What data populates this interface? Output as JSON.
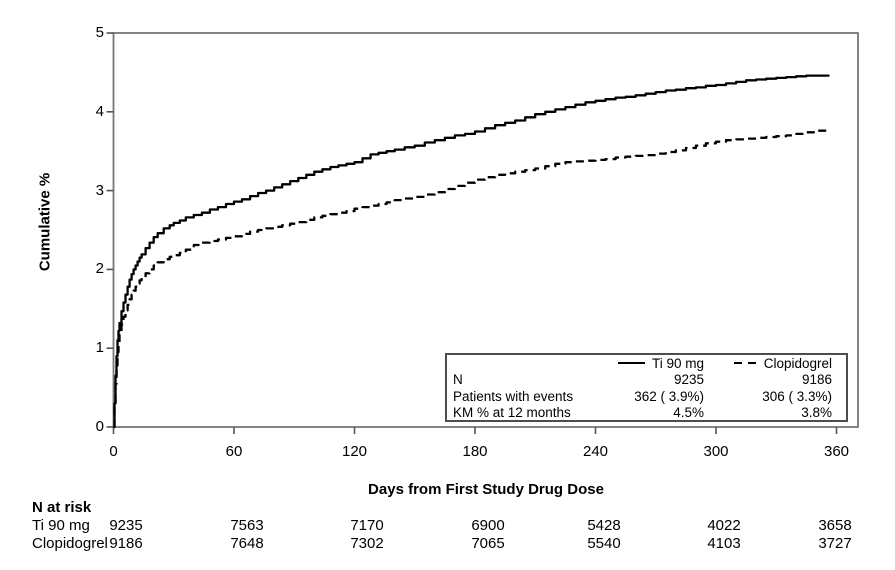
{
  "figure": {
    "background": "#ffffff",
    "frame_color": "#777777",
    "tick_color": "#555555",
    "line_color": "#000000"
  },
  "y_axis": {
    "label": "Cumulative %",
    "ticks": [
      "0",
      "1",
      "2",
      "3",
      "4",
      "5"
    ]
  },
  "x_axis": {
    "label": "Days from First Study Drug Dose",
    "ticks": [
      "0",
      "60",
      "120",
      "180",
      "240",
      "300",
      "360"
    ]
  },
  "legend": {
    "row_labels": {
      "n": "N",
      "events": "Patients with events",
      "km": "KM % at 12 months"
    },
    "series": [
      {
        "name": "Ti 90 mg",
        "line": "solid",
        "n": "9235",
        "events": "362 ( 3.9%)",
        "km": "4.5%"
      },
      {
        "name": "Clopidogrel",
        "line": "dashed",
        "n": "9186",
        "events": "306 ( 3.3%)",
        "km": "3.8%"
      }
    ]
  },
  "n_at_risk": {
    "title": "N at risk",
    "rows": [
      {
        "label": "Ti 90 mg",
        "counts": [
          "9235",
          "7563",
          "7170",
          "6900",
          "5428",
          "4022",
          "3658"
        ]
      },
      {
        "label": "Clopidogrel",
        "counts": [
          "9186",
          "7648",
          "7302",
          "7065",
          "5540",
          "4103",
          "3727"
        ]
      }
    ]
  },
  "chart_data": {
    "type": "line",
    "subtype": "kaplan-meier-cumulative-incidence",
    "title": "",
    "xlabel": "Days from First Study Drug Dose",
    "ylabel": "Cumulative %",
    "xlim": [
      0,
      370
    ],
    "ylim": [
      0,
      5
    ],
    "x_ticks": [
      0,
      60,
      120,
      180,
      240,
      300,
      360
    ],
    "y_ticks": [
      0,
      1,
      2,
      3,
      4,
      5
    ],
    "grid": false,
    "legend_position": "inside-lower-right",
    "series": [
      {
        "name": "Ti 90 mg",
        "style": "solid",
        "n": 9235,
        "patients_with_events": 362,
        "patients_with_events_pct": 3.9,
        "km_pct_at_12_months": 4.5,
        "n_at_risk": [
          9235,
          7563,
          7170,
          6900,
          5428,
          4022,
          3658
        ],
        "points": [
          [
            0,
            0
          ],
          [
            0.5,
            0.3
          ],
          [
            1,
            0.65
          ],
          [
            1.5,
            0.9
          ],
          [
            2,
            1.1
          ],
          [
            2.5,
            1.22
          ],
          [
            3,
            1.32
          ],
          [
            4,
            1.47
          ],
          [
            5,
            1.58
          ],
          [
            6,
            1.68
          ],
          [
            7,
            1.78
          ],
          [
            8,
            1.87
          ],
          [
            9,
            1.94
          ],
          [
            10,
            2.0
          ],
          [
            11,
            2.05
          ],
          [
            12,
            2.1
          ],
          [
            13,
            2.15
          ],
          [
            14,
            2.19
          ],
          [
            16,
            2.27
          ],
          [
            18,
            2.34
          ],
          [
            20,
            2.41
          ],
          [
            22,
            2.46
          ],
          [
            25,
            2.52
          ],
          [
            28,
            2.56
          ],
          [
            30,
            2.59
          ],
          [
            33,
            2.62
          ],
          [
            36,
            2.66
          ],
          [
            40,
            2.69
          ],
          [
            44,
            2.72
          ],
          [
            48,
            2.76
          ],
          [
            52,
            2.79
          ],
          [
            56,
            2.83
          ],
          [
            60,
            2.86
          ],
          [
            64,
            2.89
          ],
          [
            68,
            2.93
          ],
          [
            72,
            2.97
          ],
          [
            76,
            3.0
          ],
          [
            80,
            3.04
          ],
          [
            84,
            3.08
          ],
          [
            88,
            3.12
          ],
          [
            92,
            3.16
          ],
          [
            96,
            3.2
          ],
          [
            100,
            3.24
          ],
          [
            104,
            3.27
          ],
          [
            108,
            3.3
          ],
          [
            112,
            3.32
          ],
          [
            116,
            3.34
          ],
          [
            120,
            3.36
          ],
          [
            124,
            3.41
          ],
          [
            128,
            3.46
          ],
          [
            132,
            3.48
          ],
          [
            136,
            3.5
          ],
          [
            140,
            3.52
          ],
          [
            145,
            3.55
          ],
          [
            150,
            3.57
          ],
          [
            155,
            3.61
          ],
          [
            160,
            3.64
          ],
          [
            165,
            3.67
          ],
          [
            170,
            3.7
          ],
          [
            175,
            3.72
          ],
          [
            180,
            3.75
          ],
          [
            185,
            3.79
          ],
          [
            190,
            3.83
          ],
          [
            195,
            3.86
          ],
          [
            200,
            3.89
          ],
          [
            205,
            3.93
          ],
          [
            210,
            3.97
          ],
          [
            215,
            4.0
          ],
          [
            220,
            4.03
          ],
          [
            225,
            4.06
          ],
          [
            230,
            4.09
          ],
          [
            235,
            4.12
          ],
          [
            240,
            4.14
          ],
          [
            245,
            4.16
          ],
          [
            250,
            4.18
          ],
          [
            255,
            4.19
          ],
          [
            260,
            4.21
          ],
          [
            265,
            4.23
          ],
          [
            270,
            4.25
          ],
          [
            275,
            4.27
          ],
          [
            280,
            4.28
          ],
          [
            285,
            4.3
          ],
          [
            290,
            4.31
          ],
          [
            295,
            4.33
          ],
          [
            300,
            4.34
          ],
          [
            305,
            4.36
          ],
          [
            310,
            4.38
          ],
          [
            315,
            4.4
          ],
          [
            320,
            4.41
          ],
          [
            325,
            4.42
          ],
          [
            330,
            4.43
          ],
          [
            335,
            4.44
          ],
          [
            340,
            4.45
          ],
          [
            345,
            4.46
          ],
          [
            350,
            4.46
          ],
          [
            356,
            4.47
          ]
        ]
      },
      {
        "name": "Clopidogrel",
        "style": "dashed",
        "n": 9186,
        "patients_with_events": 306,
        "patients_with_events_pct": 3.3,
        "km_pct_at_12_months": 3.8,
        "n_at_risk": [
          9186,
          7648,
          7302,
          7065,
          5540,
          4103,
          3727
        ],
        "points": [
          [
            0,
            0
          ],
          [
            0.5,
            0.25
          ],
          [
            1,
            0.55
          ],
          [
            1.5,
            0.78
          ],
          [
            2,
            0.95
          ],
          [
            2.5,
            1.07
          ],
          [
            3,
            1.17
          ],
          [
            4,
            1.3
          ],
          [
            5,
            1.4
          ],
          [
            6,
            1.48
          ],
          [
            7,
            1.55
          ],
          [
            8,
            1.62
          ],
          [
            9,
            1.68
          ],
          [
            10,
            1.73
          ],
          [
            11,
            1.78
          ],
          [
            12,
            1.82
          ],
          [
            13,
            1.86
          ],
          [
            14,
            1.89
          ],
          [
            16,
            1.95
          ],
          [
            18,
            2.0
          ],
          [
            20,
            2.05
          ],
          [
            22,
            2.09
          ],
          [
            25,
            2.13
          ],
          [
            28,
            2.16
          ],
          [
            30,
            2.18
          ],
          [
            33,
            2.21
          ],
          [
            36,
            2.25
          ],
          [
            40,
            2.31
          ],
          [
            44,
            2.34
          ],
          [
            48,
            2.36
          ],
          [
            52,
            2.38
          ],
          [
            56,
            2.4
          ],
          [
            60,
            2.42
          ],
          [
            64,
            2.45
          ],
          [
            68,
            2.48
          ],
          [
            72,
            2.5
          ],
          [
            76,
            2.52
          ],
          [
            80,
            2.54
          ],
          [
            84,
            2.56
          ],
          [
            88,
            2.58
          ],
          [
            92,
            2.6
          ],
          [
            96,
            2.63
          ],
          [
            100,
            2.66
          ],
          [
            104,
            2.68
          ],
          [
            108,
            2.7
          ],
          [
            112,
            2.72
          ],
          [
            116,
            2.74
          ],
          [
            120,
            2.77
          ],
          [
            124,
            2.79
          ],
          [
            128,
            2.81
          ],
          [
            132,
            2.83
          ],
          [
            136,
            2.85
          ],
          [
            140,
            2.88
          ],
          [
            145,
            2.9
          ],
          [
            150,
            2.92
          ],
          [
            155,
            2.95
          ],
          [
            160,
            2.98
          ],
          [
            165,
            3.02
          ],
          [
            170,
            3.06
          ],
          [
            175,
            3.1
          ],
          [
            180,
            3.14
          ],
          [
            185,
            3.17
          ],
          [
            190,
            3.2
          ],
          [
            195,
            3.22
          ],
          [
            200,
            3.24
          ],
          [
            205,
            3.26
          ],
          [
            210,
            3.28
          ],
          [
            215,
            3.31
          ],
          [
            220,
            3.34
          ],
          [
            225,
            3.36
          ],
          [
            230,
            3.37
          ],
          [
            235,
            3.38
          ],
          [
            240,
            3.39
          ],
          [
            245,
            3.4
          ],
          [
            250,
            3.42
          ],
          [
            255,
            3.43
          ],
          [
            260,
            3.44
          ],
          [
            265,
            3.45
          ],
          [
            270,
            3.47
          ],
          [
            275,
            3.49
          ],
          [
            280,
            3.51
          ],
          [
            285,
            3.54
          ],
          [
            290,
            3.57
          ],
          [
            295,
            3.6
          ],
          [
            300,
            3.62
          ],
          [
            305,
            3.64
          ],
          [
            310,
            3.65
          ],
          [
            315,
            3.66
          ],
          [
            320,
            3.67
          ],
          [
            325,
            3.68
          ],
          [
            330,
            3.69
          ],
          [
            335,
            3.7
          ],
          [
            340,
            3.72
          ],
          [
            345,
            3.74
          ],
          [
            350,
            3.76
          ],
          [
            356,
            3.77
          ]
        ]
      }
    ]
  }
}
